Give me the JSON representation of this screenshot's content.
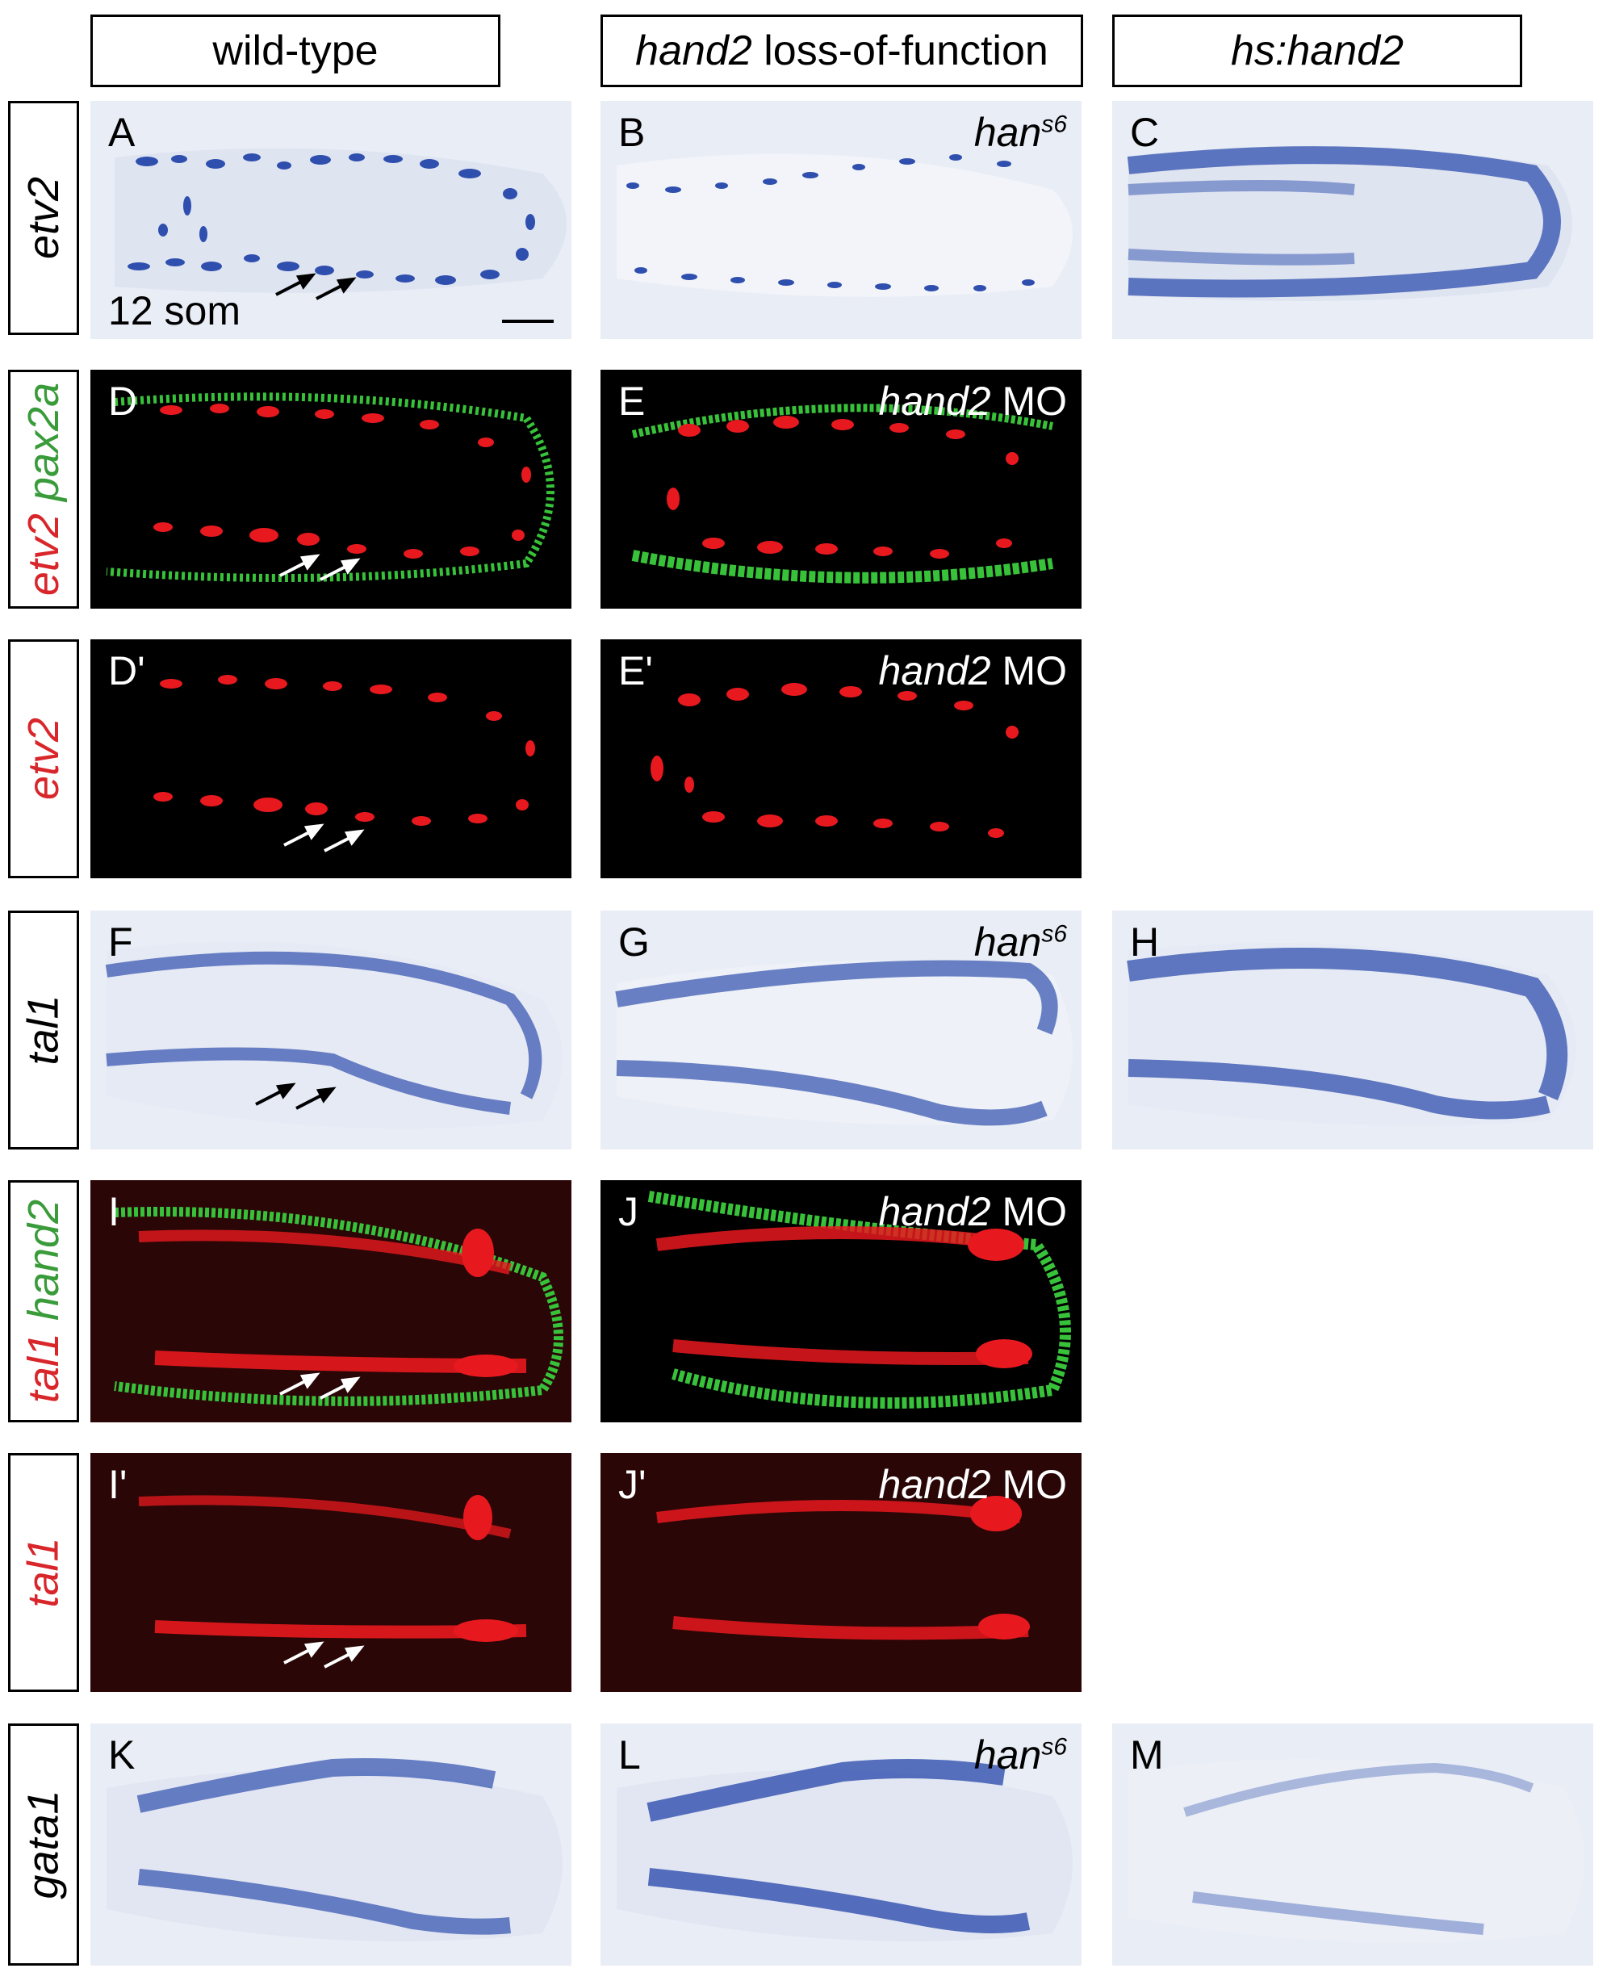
{
  "columns": {
    "wild_type": "wild-type",
    "loss_gene": "hand2",
    "loss_text": " loss-of-function",
    "hs": "hs:hand2"
  },
  "rows": {
    "etv2": "etv2",
    "d_red": "etv2",
    "d_green": " pax2a",
    "dp": "etv2",
    "tal1": "tal1",
    "i_red": "tal1",
    "i_green": " hand2",
    "ip": "tal1",
    "gata1": "gata1"
  },
  "panels": {
    "A": "A",
    "B": "B",
    "C": "C",
    "D": "D",
    "E": "E",
    "Dp": "D'",
    "Ep": "E'",
    "F": "F",
    "G": "G",
    "H": "H",
    "I": "I",
    "J": "J",
    "Ip": "I'",
    "Jp": "J'",
    "K": "K",
    "L": "L",
    "M": "M"
  },
  "conditions": {
    "han_base": "han",
    "han_sup": "s6",
    "mo_gene": "hand2",
    "mo_text": " MO"
  },
  "stage": "12 som",
  "colors": {
    "ish_blue": "#2f4fae",
    "bright_bg": "#e9edf6",
    "fluor_red": "#e8191e",
    "fluor_green": "#38c23a",
    "fluor_bg": "#000000"
  }
}
